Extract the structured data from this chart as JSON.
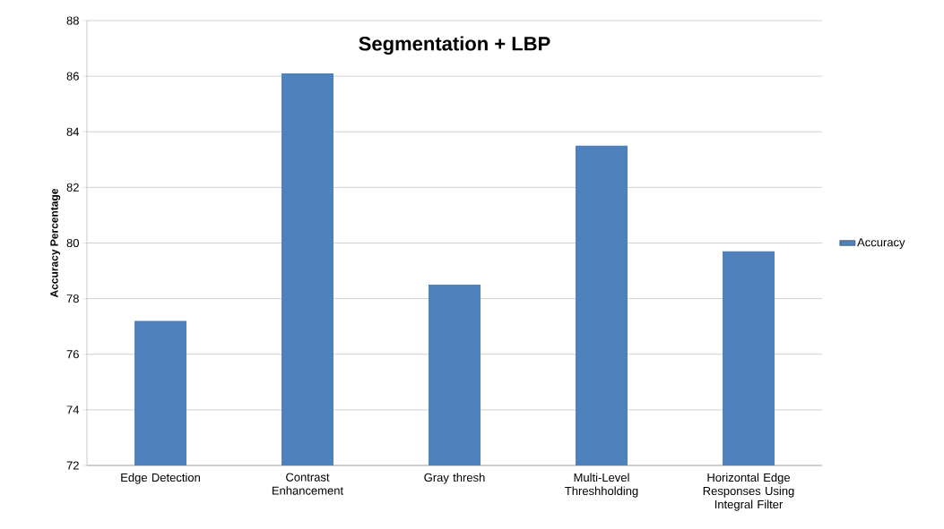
{
  "chart_data": {
    "type": "bar",
    "title": "Segmentation + LBP",
    "ylabel": "Accuracy Percentage",
    "categories": [
      "Edge Detection",
      "Contrast Enhancement",
      "Gray thresh",
      "Multi-Level Threshholding",
      "Horizontal Edge Responses Using Integral Filter"
    ],
    "series": [
      {
        "name": "Accuracy",
        "color": "#4f81bd",
        "values": [
          77.2,
          86.1,
          78.5,
          83.5,
          79.7
        ]
      }
    ],
    "ylim": [
      72,
      88
    ],
    "yticks": [
      72,
      74,
      76,
      78,
      80,
      82,
      84,
      86,
      88
    ],
    "grid": "y",
    "legend": "right"
  }
}
